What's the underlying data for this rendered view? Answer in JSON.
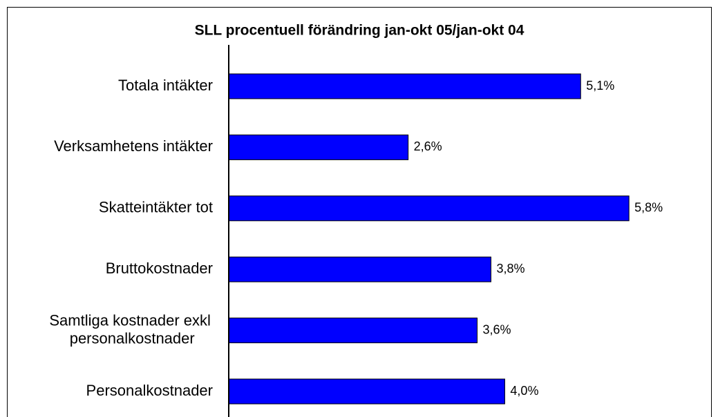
{
  "chart_data": {
    "type": "hbar",
    "title": "SLL procentuell förändring jan-okt 05/jan-okt 04",
    "categories": [
      "Totala intäkter",
      "Verksamhetens intäkter",
      "Skatteintäkter tot",
      "Bruttokostnader",
      "Samtliga kostnader exkl personalkostnader",
      "Personalkostnader"
    ],
    "values": [
      5.1,
      2.6,
      5.8,
      3.8,
      3.6,
      4.0
    ],
    "value_labels": [
      "5,1%",
      "2,6%",
      "5,8%",
      "3,8%",
      "3,6%",
      "4,0%"
    ],
    "color": "#0000ff",
    "xlim": [
      0,
      7
    ]
  }
}
